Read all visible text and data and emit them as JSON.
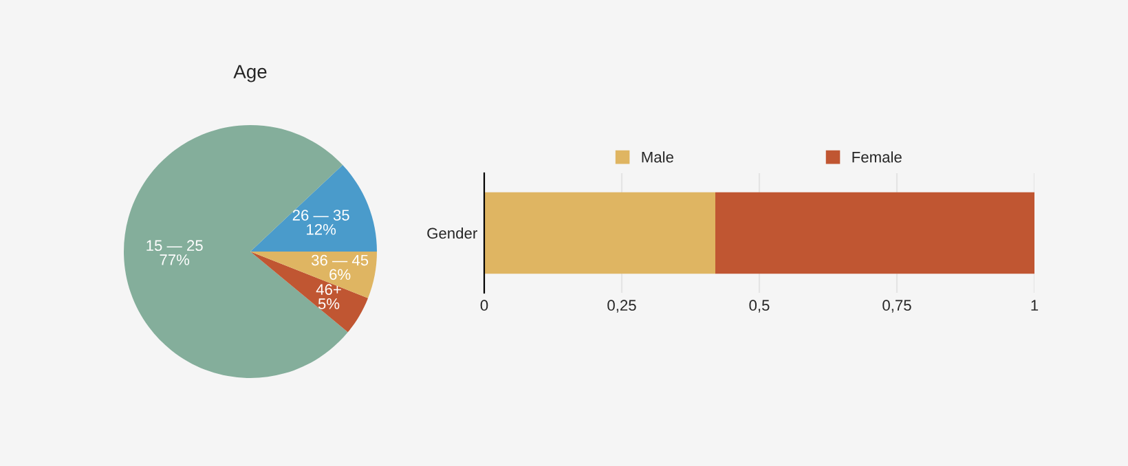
{
  "chart_data": [
    {
      "type": "pie",
      "title": "Age",
      "categories": [
        "26 — 35",
        "15 — 25",
        "46+",
        "36 — 45"
      ],
      "values": [
        12,
        77,
        5,
        6
      ],
      "value_labels": [
        "12%",
        "77%",
        "5%",
        "6%"
      ],
      "colors": [
        "#4a9bcb",
        "#84ae9b",
        "#c05632",
        "#dfb562"
      ]
    },
    {
      "type": "bar",
      "orientation": "horizontal",
      "stacked": true,
      "categories": [
        "Gender"
      ],
      "series": [
        {
          "name": "Male",
          "color": "#dfb562",
          "values": [
            0.42
          ]
        },
        {
          "name": "Female",
          "color": "#c05632",
          "values": [
            0.58
          ]
        }
      ],
      "xlim": [
        0,
        1
      ],
      "xticks": [
        0,
        {
          "value": 0.25,
          "label": "0,25"
        },
        {
          "value": 0.5,
          "label": "0,5"
        },
        {
          "value": 0.75,
          "label": "0,75"
        },
        1
      ],
      "grid": "x",
      "legend": "top"
    }
  ]
}
